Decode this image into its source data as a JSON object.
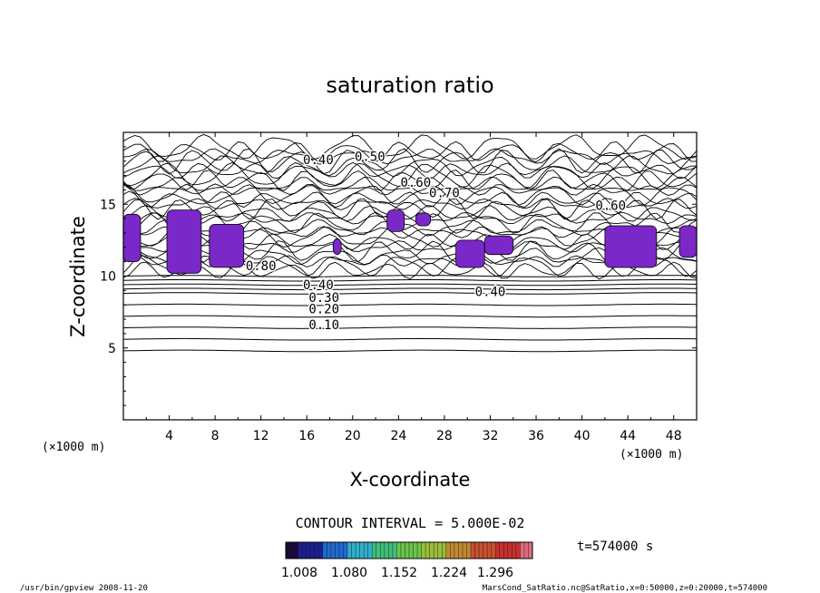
{
  "chart_data": {
    "type": "contour",
    "title": "saturation ratio",
    "xlabel": "X-coordinate",
    "ylabel": "Z-coordinate",
    "x_unit": "(×1000 m)",
    "z_unit": "(×1000 m)",
    "xlim": [
      0,
      50
    ],
    "ylim": [
      0,
      20
    ],
    "x_ticks": [
      4,
      8,
      12,
      16,
      20,
      24,
      28,
      32,
      36,
      40,
      44,
      48
    ],
    "y_ticks": [
      5,
      10,
      15
    ],
    "contour_interval_text": "CONTOUR INTERVAL = 5.000E-02",
    "contour_labels": [
      {
        "text": "0.10",
        "x": 17.5,
        "z": 6.3
      },
      {
        "text": "0.20",
        "x": 17.5,
        "z": 7.4
      },
      {
        "text": "0.30",
        "x": 17.5,
        "z": 8.2
      },
      {
        "text": "0.40",
        "x": 17.0,
        "z": 9.1
      },
      {
        "text": "0.40",
        "x": 32.0,
        "z": 8.6
      },
      {
        "text": "0.40",
        "x": 17.0,
        "z": 17.8
      },
      {
        "text": "0.50",
        "x": 21.5,
        "z": 18.0
      },
      {
        "text": "0.60",
        "x": 25.5,
        "z": 16.2
      },
      {
        "text": "0.70",
        "x": 28.0,
        "z": 15.5
      },
      {
        "text": "0.60",
        "x": 42.5,
        "z": 14.6
      },
      {
        "text": "0.80",
        "x": 12.0,
        "z": 10.4
      }
    ],
    "shaded_regions": [
      {
        "x": [
          0.0,
          1.5
        ],
        "z": [
          11.0,
          14.3
        ]
      },
      {
        "x": [
          3.8,
          6.8
        ],
        "z": [
          10.2,
          14.6
        ]
      },
      {
        "x": [
          7.5,
          10.5
        ],
        "z": [
          10.6,
          13.6
        ]
      },
      {
        "x": [
          18.3,
          19.0
        ],
        "z": [
          11.5,
          12.6
        ]
      },
      {
        "x": [
          23.0,
          24.5
        ],
        "z": [
          13.1,
          14.6
        ]
      },
      {
        "x": [
          25.5,
          26.8
        ],
        "z": [
          13.5,
          14.4
        ]
      },
      {
        "x": [
          29.0,
          31.5
        ],
        "z": [
          10.6,
          12.5
        ]
      },
      {
        "x": [
          31.5,
          34.0
        ],
        "z": [
          11.5,
          12.8
        ]
      },
      {
        "x": [
          42.0,
          46.5
        ],
        "z": [
          10.6,
          13.5
        ]
      },
      {
        "x": [
          48.5,
          50.0
        ],
        "z": [
          11.3,
          13.5
        ]
      }
    ],
    "colorbar": {
      "ticks": [
        "1.008",
        "1.080",
        "1.152",
        "1.224",
        "1.296"
      ],
      "colors": [
        "#1c0a3a",
        "#1a1f8c",
        "#1f6ad0",
        "#2fb0c8",
        "#3fbf7a",
        "#6cc44a",
        "#9bbf3a",
        "#c08a30",
        "#c85030",
        "#c83030",
        "#e06a80"
      ]
    },
    "time_label": "t=574000 s",
    "footer_left": "/usr/bin/gpview  2008-11-20",
    "footer_right": "MarsCond_SatRatio.nc@SatRatio,x=0:50000,z=0:20000,t=574000",
    "fill_color": "#7a28c8"
  }
}
